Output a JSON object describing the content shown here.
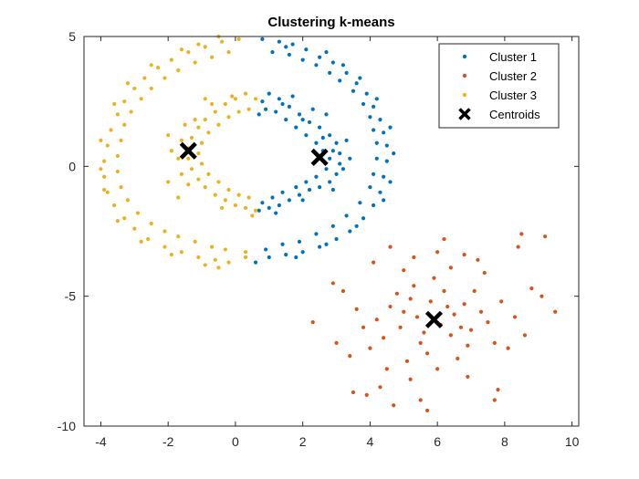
{
  "chart_data": {
    "type": "scatter",
    "title": "Clustering k-means",
    "xlabel": "",
    "ylabel": "",
    "xlim": [
      -4.5,
      10.2
    ],
    "ylim": [
      -10,
      5
    ],
    "xticks": [
      -4,
      -2,
      0,
      2,
      4,
      6,
      8,
      10
    ],
    "yticks": [
      -10,
      -5,
      0,
      5
    ],
    "grid": false,
    "legend_position": "top-right",
    "series": [
      {
        "name": "Cluster 1",
        "color": "#0072BD",
        "marker": "dot",
        "points": [
          [
            0.8,
            4.9
          ],
          [
            1.3,
            4.8
          ],
          [
            1.7,
            4.7
          ],
          [
            2.1,
            4.5
          ],
          [
            2.5,
            4.2
          ],
          [
            2.9,
            4.0
          ],
          [
            3.3,
            3.6
          ],
          [
            3.6,
            3.2
          ],
          [
            3.9,
            2.8
          ],
          [
            4.1,
            2.3
          ],
          [
            4.3,
            1.8
          ],
          [
            4.4,
            1.3
          ],
          [
            4.5,
            0.8
          ],
          [
            4.5,
            0.2
          ],
          [
            4.4,
            -0.4
          ],
          [
            4.3,
            -1.0
          ],
          [
            4.1,
            -1.5
          ],
          [
            3.8,
            -2.0
          ],
          [
            3.4,
            -2.5
          ],
          [
            3.0,
            -2.8
          ],
          [
            2.5,
            -3.1
          ],
          [
            2.0,
            -3.3
          ],
          [
            1.5,
            -3.4
          ],
          [
            1.0,
            -3.5
          ],
          [
            0.6,
            -3.7
          ],
          [
            1.1,
            4.4
          ],
          [
            1.6,
            4.3
          ],
          [
            2.0,
            4.1
          ],
          [
            2.4,
            3.9
          ],
          [
            2.8,
            3.6
          ],
          [
            3.1,
            3.3
          ],
          [
            3.5,
            2.9
          ],
          [
            3.8,
            2.4
          ],
          [
            4.0,
            1.9
          ],
          [
            4.1,
            1.4
          ],
          [
            4.2,
            0.9
          ],
          [
            4.2,
            0.3
          ],
          [
            4.1,
            -0.3
          ],
          [
            4.0,
            -0.8
          ],
          [
            3.7,
            -1.4
          ],
          [
            3.3,
            -1.9
          ],
          [
            2.9,
            -2.3
          ],
          [
            2.4,
            -2.6
          ],
          [
            1.9,
            -2.9
          ],
          [
            1.4,
            -3.0
          ],
          [
            0.9,
            -3.2
          ],
          [
            1.5,
            4.6
          ],
          [
            2.7,
            4.4
          ],
          [
            3.2,
            3.9
          ],
          [
            3.7,
            3.4
          ],
          [
            4.2,
            2.6
          ],
          [
            4.6,
            1.5
          ],
          [
            4.7,
            0.5
          ],
          [
            4.6,
            -0.6
          ],
          [
            4.4,
            -1.3
          ],
          [
            3.6,
            -2.3
          ],
          [
            2.7,
            -3.0
          ],
          [
            1.8,
            -3.5
          ],
          [
            0.8,
            2.5
          ],
          [
            1.0,
            2.8
          ],
          [
            1.3,
            2.6
          ],
          [
            1.6,
            2.3
          ],
          [
            1.9,
            2.0
          ],
          [
            2.2,
            1.7
          ],
          [
            2.5,
            1.5
          ],
          [
            2.8,
            1.2
          ],
          [
            3.0,
            0.9
          ],
          [
            3.1,
            0.5
          ],
          [
            3.1,
            0.1
          ],
          [
            3.0,
            -0.3
          ],
          [
            2.8,
            -0.6
          ],
          [
            2.5,
            -0.8
          ],
          [
            2.2,
            -0.9
          ],
          [
            1.9,
            -1.1
          ],
          [
            1.6,
            -1.3
          ],
          [
            1.3,
            -1.5
          ],
          [
            1.0,
            -1.6
          ],
          [
            0.7,
            -1.7
          ],
          [
            1.2,
            2.1
          ],
          [
            1.5,
            1.8
          ],
          [
            1.8,
            1.5
          ],
          [
            2.1,
            1.2
          ],
          [
            2.4,
            0.9
          ],
          [
            2.6,
            0.6
          ],
          [
            2.8,
            0.3
          ],
          [
            2.7,
            -0.1
          ],
          [
            2.4,
            -0.4
          ],
          [
            2.1,
            -0.6
          ],
          [
            1.8,
            -0.8
          ],
          [
            1.4,
            -1.0
          ],
          [
            1.1,
            -1.2
          ],
          [
            0.9,
            2.2
          ],
          [
            1.4,
            2.4
          ],
          [
            2.0,
            1.8
          ],
          [
            2.6,
            1.1
          ],
          [
            2.9,
            0.6
          ],
          [
            3.2,
            -0.1
          ],
          [
            2.9,
            -0.9
          ],
          [
            2.0,
            -1.3
          ],
          [
            1.2,
            -1.8
          ],
          [
            0.7,
            2.0
          ],
          [
            0.8,
            -1.4
          ],
          [
            1.7,
            2.7
          ],
          [
            2.3,
            2.2
          ],
          [
            2.7,
            2.0
          ],
          [
            3.3,
            1.0
          ],
          [
            3.4,
            0.3
          ]
        ]
      },
      {
        "name": "Cluster 2",
        "color": "#D95319",
        "marker": "dot",
        "points": [
          [
            5.9,
            -5.9
          ],
          [
            5.2,
            -5.1
          ],
          [
            6.4,
            -6.5
          ],
          [
            5.5,
            -6.8
          ],
          [
            6.8,
            -5.3
          ],
          [
            4.9,
            -6.2
          ],
          [
            6.2,
            -4.8
          ],
          [
            5.0,
            -5.6
          ],
          [
            7.0,
            -6.3
          ],
          [
            5.7,
            -7.2
          ],
          [
            6.5,
            -5.7
          ],
          [
            4.6,
            -5.4
          ],
          [
            5.3,
            -4.6
          ],
          [
            6.9,
            -6.9
          ],
          [
            5.8,
            -5.2
          ],
          [
            6.1,
            -6.1
          ],
          [
            4.4,
            -6.6
          ],
          [
            7.3,
            -5.6
          ],
          [
            5.6,
            -6.4
          ],
          [
            6.6,
            -7.4
          ],
          [
            4.8,
            -4.9
          ],
          [
            7.5,
            -6.0
          ],
          [
            5.1,
            -7.5
          ],
          [
            6.3,
            -5.4
          ],
          [
            4.2,
            -5.9
          ],
          [
            7.1,
            -4.8
          ],
          [
            5.4,
            -5.8
          ],
          [
            6.0,
            -7.8
          ],
          [
            4.0,
            -7.0
          ],
          [
            7.7,
            -6.8
          ],
          [
            5.9,
            -4.3
          ],
          [
            6.7,
            -6.2
          ],
          [
            4.5,
            -7.8
          ],
          [
            7.9,
            -5.2
          ],
          [
            5.2,
            -8.2
          ],
          [
            6.4,
            -3.9
          ],
          [
            3.8,
            -6.2
          ],
          [
            8.1,
            -7.0
          ],
          [
            5.0,
            -4.0
          ],
          [
            6.9,
            -8.1
          ],
          [
            3.6,
            -5.5
          ],
          [
            8.3,
            -5.8
          ],
          [
            4.3,
            -8.5
          ],
          [
            7.4,
            -4.1
          ],
          [
            3.4,
            -7.3
          ],
          [
            8.6,
            -6.5
          ],
          [
            5.5,
            -9.0
          ],
          [
            6.8,
            -3.4
          ],
          [
            3.2,
            -4.8
          ],
          [
            8.8,
            -4.7
          ],
          [
            4.1,
            -3.7
          ],
          [
            7.8,
            -8.6
          ],
          [
            2.3,
            -6.0
          ],
          [
            9.1,
            -5.0
          ],
          [
            3.9,
            -8.8
          ],
          [
            8.4,
            -3.1
          ],
          [
            3.0,
            -6.8
          ],
          [
            9.5,
            -5.6
          ],
          [
            4.7,
            -9.2
          ],
          [
            7.7,
            -9.0
          ],
          [
            2.9,
            -4.5
          ],
          [
            9.2,
            -2.7
          ],
          [
            3.5,
            -8.7
          ],
          [
            8.5,
            -2.6
          ],
          [
            6.2,
            -2.8
          ],
          [
            4.6,
            -3.1
          ],
          [
            5.3,
            -3.5
          ],
          [
            6.0,
            -3.3
          ],
          [
            7.2,
            -3.6
          ],
          [
            5.7,
            -9.4
          ]
        ]
      },
      {
        "name": "Cluster 3",
        "color": "#EDB120",
        "marker": "dot",
        "points": [
          [
            0.1,
            4.9
          ],
          [
            -0.4,
            4.8
          ],
          [
            -0.9,
            4.6
          ],
          [
            -1.4,
            4.4
          ],
          [
            -1.9,
            4.1
          ],
          [
            -2.3,
            3.8
          ],
          [
            -2.7,
            3.4
          ],
          [
            -3.0,
            3.0
          ],
          [
            -3.3,
            2.5
          ],
          [
            -3.5,
            2.0
          ],
          [
            -3.7,
            1.4
          ],
          [
            -3.8,
            0.8
          ],
          [
            -3.9,
            0.2
          ],
          [
            -3.9,
            -0.4
          ],
          [
            -3.8,
            -1.0
          ],
          [
            -3.6,
            -1.5
          ],
          [
            -3.3,
            -2.0
          ],
          [
            -3.0,
            -2.4
          ],
          [
            -2.6,
            -2.8
          ],
          [
            -2.1,
            -3.1
          ],
          [
            -1.6,
            -3.3
          ],
          [
            -1.1,
            -3.5
          ],
          [
            -0.6,
            -3.6
          ],
          [
            -0.2,
            -3.7
          ],
          [
            0.3,
            -3.5
          ],
          [
            -0.2,
            4.4
          ],
          [
            -0.7,
            4.2
          ],
          [
            -1.2,
            4.0
          ],
          [
            -1.7,
            3.7
          ],
          [
            -2.1,
            3.4
          ],
          [
            -2.5,
            3.0
          ],
          [
            -2.8,
            2.6
          ],
          [
            -3.1,
            2.1
          ],
          [
            -3.3,
            1.6
          ],
          [
            -3.4,
            1.0
          ],
          [
            -3.5,
            0.4
          ],
          [
            -3.5,
            -0.2
          ],
          [
            -3.4,
            -0.8
          ],
          [
            -3.2,
            -1.3
          ],
          [
            -2.9,
            -1.8
          ],
          [
            -2.5,
            -2.2
          ],
          [
            -2.1,
            -2.5
          ],
          [
            -1.7,
            -2.7
          ],
          [
            -1.2,
            -2.9
          ],
          [
            -0.7,
            -3.1
          ],
          [
            -0.3,
            -3.2
          ],
          [
            0.3,
            -3.3
          ],
          [
            -0.5,
            5.0
          ],
          [
            -1.1,
            4.7
          ],
          [
            -1.6,
            4.5
          ],
          [
            -2.5,
            3.9
          ],
          [
            -3.2,
            3.2
          ],
          [
            -3.6,
            2.4
          ],
          [
            -4.0,
            1.0
          ],
          [
            -4.0,
            -0.1
          ],
          [
            -3.9,
            -0.9
          ],
          [
            -3.5,
            -2.1
          ],
          [
            -2.8,
            -2.9
          ],
          [
            -1.9,
            -3.4
          ],
          [
            -0.9,
            -3.8
          ],
          [
            -0.5,
            -3.9
          ],
          [
            0.6,
            2.6
          ],
          [
            0.3,
            2.8
          ],
          [
            0.0,
            2.6
          ],
          [
            -0.3,
            2.4
          ],
          [
            -0.6,
            2.1
          ],
          [
            -0.9,
            1.8
          ],
          [
            -1.1,
            1.5
          ],
          [
            -1.3,
            1.1
          ],
          [
            -1.4,
            0.7
          ],
          [
            -1.4,
            0.3
          ],
          [
            -1.3,
            -0.1
          ],
          [
            -1.1,
            -0.5
          ],
          [
            -0.9,
            -0.8
          ],
          [
            -0.6,
            -1.1
          ],
          [
            -0.3,
            -1.3
          ],
          [
            0.0,
            -1.5
          ],
          [
            0.3,
            -1.6
          ],
          [
            0.6,
            -1.7
          ],
          [
            0.4,
            2.2
          ],
          [
            0.1,
            2.1
          ],
          [
            -0.2,
            1.9
          ],
          [
            -0.5,
            1.6
          ],
          [
            -0.8,
            1.3
          ],
          [
            -1.0,
            0.9
          ],
          [
            -1.1,
            0.5
          ],
          [
            -1.0,
            0.1
          ],
          [
            -0.8,
            -0.3
          ],
          [
            -0.5,
            -0.6
          ],
          [
            -0.2,
            -0.9
          ],
          [
            0.1,
            -1.1
          ],
          [
            0.4,
            -1.2
          ],
          [
            -1.6,
            1.0
          ],
          [
            -1.7,
            0.3
          ],
          [
            -1.6,
            -0.3
          ],
          [
            -1.4,
            -0.7
          ],
          [
            -1.2,
            1.8
          ],
          [
            -0.7,
            2.4
          ],
          [
            0.5,
            -1.9
          ],
          [
            -0.4,
            -1.6
          ],
          [
            -1.7,
            -1.2
          ],
          [
            -2.0,
            -0.6
          ],
          [
            -1.9,
            0.6
          ],
          [
            -2.0,
            1.2
          ],
          [
            -1.5,
            1.6
          ],
          [
            -0.9,
            2.6
          ],
          [
            -0.1,
            2.7
          ]
        ]
      },
      {
        "name": "Centroids",
        "color": "#000000",
        "marker": "x",
        "points": [
          [
            -1.4,
            0.6
          ],
          [
            2.5,
            0.35
          ],
          [
            5.9,
            -5.9
          ]
        ]
      }
    ]
  }
}
